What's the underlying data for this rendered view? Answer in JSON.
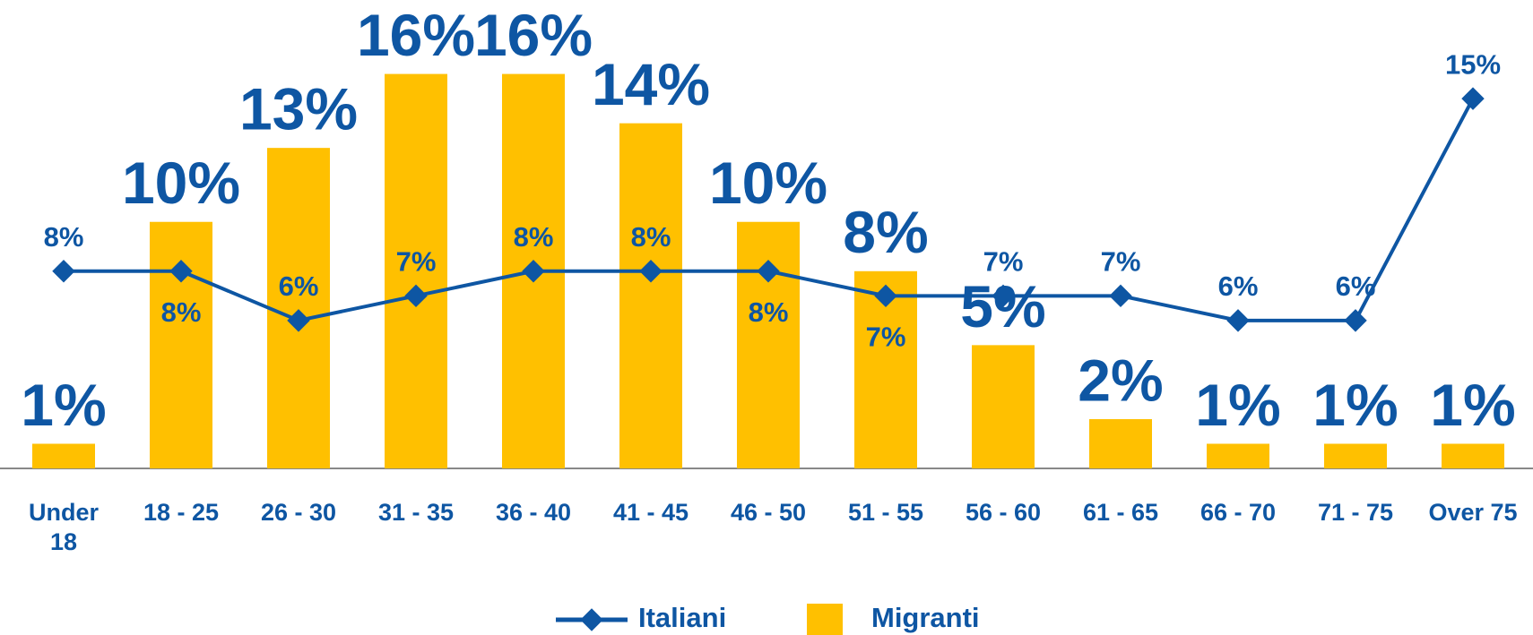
{
  "chart_data": {
    "type": "bar_line",
    "categories": [
      "Under 18",
      "18 - 25",
      "26 - 30",
      "31 - 35",
      "36 - 40",
      "41 - 45",
      "46 - 50",
      "51 - 55",
      "56 - 60",
      "61 - 65",
      "66 - 70",
      "71 - 75",
      "Over 75"
    ],
    "series": [
      {
        "name": "Italiani",
        "type": "line",
        "color": "#0e56a3",
        "values": [
          8,
          8,
          6,
          7,
          8,
          8,
          8,
          7,
          7,
          7,
          6,
          6,
          15
        ],
        "value_labels": [
          "8%",
          "8%",
          "6%",
          "7%",
          "8%",
          "8%",
          "8%",
          "7%",
          "7%",
          "7%",
          "6%",
          "6%",
          "15%"
        ]
      },
      {
        "name": "Migranti",
        "type": "bar",
        "color": "#ffc000",
        "values": [
          1,
          10,
          13,
          16,
          16,
          14,
          10,
          8,
          5,
          2,
          1,
          1,
          1
        ],
        "value_labels": [
          "1%",
          "10%",
          "13%",
          "16%",
          "16%",
          "14%",
          "10%",
          "8%",
          "5%",
          "2%",
          "1%",
          "1%",
          "1%"
        ]
      }
    ],
    "ylim": [
      0,
      19
    ],
    "legend": "bottom"
  }
}
